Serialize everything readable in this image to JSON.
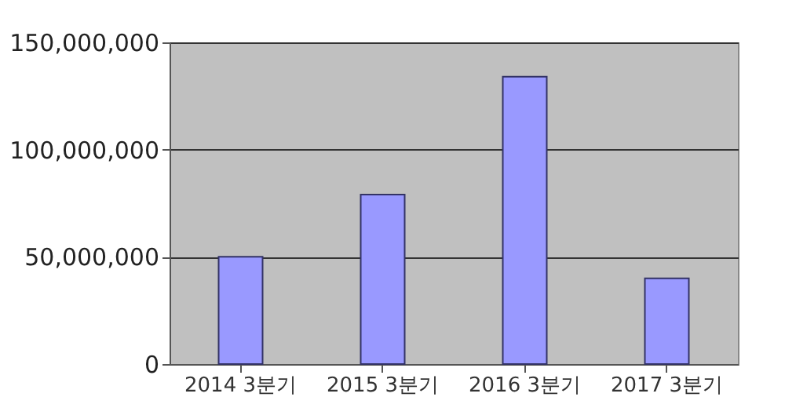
{
  "chart_data": {
    "type": "bar",
    "categories": [
      "2014 3분기",
      "2015 3분기",
      "2016 3분기",
      "2017 3분기"
    ],
    "values": [
      50000000,
      79000000,
      134000000,
      40000000
    ],
    "color": "#9999ff",
    "ylim": [
      0,
      150000000
    ],
    "yticks": [
      0,
      {
        "value": 50000000,
        "label": "50,000,000"
      },
      {
        "value": 100000000,
        "label": "100,000,000"
      },
      {
        "value": 150000000,
        "label": "150,000,000"
      }
    ],
    "grid": "y"
  }
}
